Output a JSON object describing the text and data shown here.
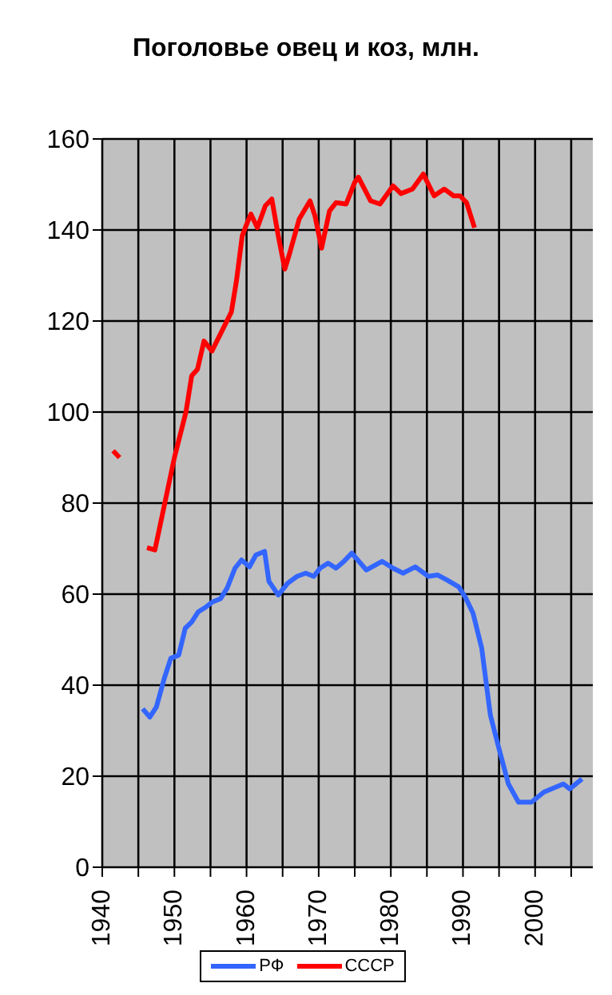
{
  "chart_data": {
    "type": "line",
    "title": "Поголовье овец и коз, млн.",
    "xlim": [
      1940,
      2008
    ],
    "xticks": [
      1940,
      {
        "value": 1945,
        "label": null
      },
      1950,
      {
        "value": 1955,
        "label": null
      },
      1960,
      {
        "value": 1965,
        "label": null
      },
      1970,
      {
        "value": 1975,
        "label": null
      },
      1980,
      {
        "value": 1985,
        "label": null
      },
      1990,
      {
        "value": 1995,
        "label": null
      },
      2000,
      {
        "value": 2005,
        "label": null
      }
    ],
    "ylim": [
      0,
      160
    ],
    "yticks": [
      0,
      20,
      40,
      60,
      80,
      100,
      120,
      140,
      160
    ],
    "grid": true,
    "legend": "bottom",
    "line_style": "solid",
    "marker": "none",
    "series": [
      {
        "name": "РФ",
        "color": "#3366ff",
        "x": [
          1945.6,
          1946.6,
          1947.5,
          1948.6,
          1949.5,
          1950.6,
          1951.5,
          1952.4,
          1953.3,
          1954.4,
          1955.3,
          1956.4,
          1957.3,
          1958.4,
          1959.3,
          1960.4,
          1961.3,
          1962.5,
          1963.1,
          1964.4,
          1965.7,
          1967,
          1968.2,
          1969.3,
          1970.2,
          1971.3,
          1972.4,
          1973.5,
          1974.6,
          1976.6,
          1978.8,
          1980.3,
          1981.7,
          1983.4,
          1985.2,
          1986.5,
          1987.8,
          1989.4,
          1990.3,
          1991.4,
          1992.6,
          1993.8,
          1995,
          1996.3,
          1997.7,
          1999.5,
          2001.2,
          2003.9,
          2004.8,
          2006.5
        ],
        "values": [
          34.8,
          33,
          35.2,
          41.5,
          45.9,
          46.6,
          52.5,
          53.9,
          56.1,
          57.2,
          58.3,
          59,
          61.3,
          65.7,
          67.5,
          66,
          68.6,
          69.4,
          62.8,
          59.8,
          62.4,
          63.9,
          64.6,
          63.9,
          65.7,
          66.8,
          65.7,
          67.2,
          69,
          65.3,
          67.2,
          65.7,
          64.6,
          66,
          63.9,
          64.2,
          63.1,
          61.6,
          59.4,
          55.8,
          48.1,
          33.4,
          26,
          18.3,
          14.3,
          14.3,
          16.5,
          18.3,
          17.2,
          19.4
        ]
      },
      {
        "name": "СССР",
        "color": "#ff0000",
        "x": [
          1941.5,
          1942.4,
          1944,
          1946.2,
          1947.3,
          1950,
          1951.6,
          1952.4,
          1953.2,
          1954.1,
          1955.2,
          1956.8,
          1957.9,
          1958.6,
          1959.4,
          1960.1,
          1960.6,
          1961.5,
          1962.6,
          1963.5,
          1964.4,
          1965.3,
          1966,
          1967.3,
          1968.8,
          1969.5,
          1970.4,
          1971.5,
          1972.4,
          1973.8,
          1975,
          1975.5,
          1977.2,
          1978.5,
          1980.3,
          1981.4,
          1983,
          1984.5,
          1986,
          1987.4,
          1988.7,
          1989.6,
          1990.5,
          1991.6
        ],
        "values": [
          91.5,
          90,
          null,
          70.2,
          69.7,
          90,
          100,
          108,
          109.4,
          115.6,
          113.4,
          118.5,
          122,
          128.8,
          138.7,
          141.6,
          143.5,
          140.5,
          145.3,
          146.8,
          138.7,
          131.4,
          135,
          142.4,
          146.4,
          143,
          136,
          144.2,
          146,
          145.7,
          150.5,
          151.6,
          146.4,
          145.7,
          149.7,
          148,
          149,
          152.3,
          147.5,
          149,
          147.5,
          147.5,
          146,
          140.5
        ]
      }
    ]
  }
}
